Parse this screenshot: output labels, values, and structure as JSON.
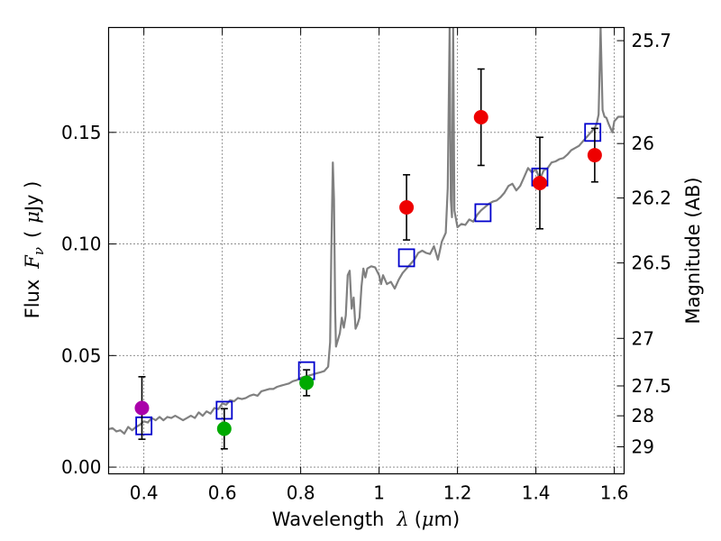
{
  "chart_data": {
    "type": "scatter",
    "title": "",
    "xlabel": "Wavelength",
    "xlabel_symbol": "λ",
    "xlabel_unit_open": "(",
    "xlabel_unit_mu": "μ",
    "xlabel_unit_rest": "m)",
    "ylabel": "Flux",
    "ylabel_symbol": "F",
    "ylabel_subscript": "ν",
    "ylabel_unit_open": "(",
    "ylabel_unit_mu": "μ",
    "ylabel_unit_rest": "Jy )",
    "y2label": "Magnitude (AB)",
    "xlim": [
      0.31,
      1.625
    ],
    "ylim": [
      -0.003,
      0.197
    ],
    "grid": true,
    "xticks": [
      0.4,
      0.6,
      0.8,
      1.0,
      1.2,
      1.4,
      1.6
    ],
    "xtick_labels": [
      "0.4",
      "0.6",
      "0.8",
      "1",
      "1.2",
      "1.4",
      "1.6"
    ],
    "yticks": [
      0.0,
      0.05,
      0.1,
      0.15
    ],
    "ytick_labels": [
      "0.00",
      "0.05",
      "0.10",
      "0.15"
    ],
    "y2ticks": [
      {
        "label": "25.7",
        "flux": 0.1911
      },
      {
        "label": "26",
        "flux": 0.145
      },
      {
        "label": "26.2",
        "flux": 0.1206
      },
      {
        "label": "26.5",
        "flux": 0.0915
      },
      {
        "label": "27",
        "flux": 0.0577
      },
      {
        "label": "27.5",
        "flux": 0.0364
      },
      {
        "label": "28",
        "flux": 0.023
      },
      {
        "label": "29",
        "flux": 0.0091
      }
    ],
    "series": [
      {
        "name": "model spectrum",
        "kind": "line",
        "color": "#808080",
        "points": [
          [
            0.31,
            0.017
          ],
          [
            0.32,
            0.0175
          ],
          [
            0.33,
            0.016
          ],
          [
            0.34,
            0.0165
          ],
          [
            0.35,
            0.015
          ],
          [
            0.36,
            0.018
          ],
          [
            0.37,
            0.0165
          ],
          [
            0.38,
            0.018
          ],
          [
            0.39,
            0.019
          ],
          [
            0.4,
            0.0205
          ],
          [
            0.41,
            0.02
          ],
          [
            0.42,
            0.022
          ],
          [
            0.43,
            0.021
          ],
          [
            0.44,
            0.0225
          ],
          [
            0.45,
            0.021
          ],
          [
            0.46,
            0.0225
          ],
          [
            0.47,
            0.022
          ],
          [
            0.48,
            0.023
          ],
          [
            0.49,
            0.022
          ],
          [
            0.5,
            0.021
          ],
          [
            0.51,
            0.022
          ],
          [
            0.52,
            0.023
          ],
          [
            0.53,
            0.022
          ],
          [
            0.54,
            0.0245
          ],
          [
            0.55,
            0.023
          ],
          [
            0.56,
            0.025
          ],
          [
            0.57,
            0.024
          ],
          [
            0.58,
            0.0265
          ],
          [
            0.59,
            0.026
          ],
          [
            0.6,
            0.0285
          ],
          [
            0.61,
            0.028
          ],
          [
            0.62,
            0.03
          ],
          [
            0.63,
            0.0295
          ],
          [
            0.64,
            0.031
          ],
          [
            0.65,
            0.0305
          ],
          [
            0.66,
            0.031
          ],
          [
            0.67,
            0.032
          ],
          [
            0.68,
            0.0325
          ],
          [
            0.69,
            0.032
          ],
          [
            0.7,
            0.034
          ],
          [
            0.71,
            0.0345
          ],
          [
            0.72,
            0.035
          ],
          [
            0.73,
            0.035
          ],
          [
            0.74,
            0.036
          ],
          [
            0.75,
            0.0365
          ],
          [
            0.76,
            0.037
          ],
          [
            0.77,
            0.0375
          ],
          [
            0.78,
            0.0385
          ],
          [
            0.79,
            0.039
          ],
          [
            0.8,
            0.04
          ],
          [
            0.81,
            0.0405
          ],
          [
            0.82,
            0.041
          ],
          [
            0.83,
            0.0415
          ],
          [
            0.84,
            0.042
          ],
          [
            0.85,
            0.0425
          ],
          [
            0.86,
            0.043
          ],
          [
            0.87,
            0.045
          ],
          [
            0.875,
            0.056
          ],
          [
            0.878,
            0.096
          ],
          [
            0.882,
            0.1365
          ],
          [
            0.885,
            0.12
          ],
          [
            0.888,
            0.07
          ],
          [
            0.89,
            0.054
          ],
          [
            0.9,
            0.06
          ],
          [
            0.905,
            0.067
          ],
          [
            0.91,
            0.0625
          ],
          [
            0.915,
            0.068
          ],
          [
            0.92,
            0.086
          ],
          [
            0.925,
            0.088
          ],
          [
            0.93,
            0.071
          ],
          [
            0.935,
            0.076
          ],
          [
            0.94,
            0.062
          ],
          [
            0.945,
            0.064
          ],
          [
            0.95,
            0.067
          ],
          [
            0.955,
            0.081
          ],
          [
            0.96,
            0.089
          ],
          [
            0.965,
            0.085
          ],
          [
            0.97,
            0.089
          ],
          [
            0.98,
            0.09
          ],
          [
            0.99,
            0.0895
          ],
          [
            1.0,
            0.086
          ],
          [
            1.005,
            0.082
          ],
          [
            1.01,
            0.086
          ],
          [
            1.02,
            0.082
          ],
          [
            1.03,
            0.083
          ],
          [
            1.04,
            0.08
          ],
          [
            1.05,
            0.084
          ],
          [
            1.06,
            0.087
          ],
          [
            1.07,
            0.089
          ],
          [
            1.08,
            0.091
          ],
          [
            1.09,
            0.093
          ],
          [
            1.1,
            0.096
          ],
          [
            1.11,
            0.097
          ],
          [
            1.12,
            0.096
          ],
          [
            1.13,
            0.0955
          ],
          [
            1.14,
            0.099
          ],
          [
            1.15,
            0.093
          ],
          [
            1.155,
            0.097
          ],
          [
            1.16,
            0.101
          ],
          [
            1.17,
            0.105
          ],
          [
            1.175,
            0.125
          ],
          [
            1.18,
            0.197
          ],
          [
            1.183,
            0.12
          ],
          [
            1.186,
            0.112
          ],
          [
            1.189,
            0.197
          ],
          [
            1.192,
            0.115
          ],
          [
            1.2,
            0.1075
          ],
          [
            1.21,
            0.109
          ],
          [
            1.22,
            0.1085
          ],
          [
            1.23,
            0.111
          ],
          [
            1.24,
            0.11
          ],
          [
            1.25,
            0.113
          ],
          [
            1.26,
            0.115
          ],
          [
            1.27,
            0.1165
          ],
          [
            1.28,
            0.118
          ],
          [
            1.29,
            0.119
          ],
          [
            1.3,
            0.1195
          ],
          [
            1.31,
            0.121
          ],
          [
            1.32,
            0.123
          ],
          [
            1.33,
            0.126
          ],
          [
            1.34,
            0.127
          ],
          [
            1.35,
            0.124
          ],
          [
            1.36,
            0.126
          ],
          [
            1.37,
            0.13
          ],
          [
            1.38,
            0.134
          ],
          [
            1.39,
            0.132
          ],
          [
            1.4,
            0.1335
          ],
          [
            1.41,
            0.129
          ],
          [
            1.42,
            0.133
          ],
          [
            1.43,
            0.134
          ],
          [
            1.44,
            0.1365
          ],
          [
            1.45,
            0.137
          ],
          [
            1.46,
            0.138
          ],
          [
            1.47,
            0.1385
          ],
          [
            1.48,
            0.14
          ],
          [
            1.49,
            0.142
          ],
          [
            1.5,
            0.143
          ],
          [
            1.51,
            0.144
          ],
          [
            1.52,
            0.146
          ],
          [
            1.53,
            0.148
          ],
          [
            1.54,
            0.15
          ],
          [
            1.55,
            0.152
          ],
          [
            1.555,
            0.154
          ],
          [
            1.56,
            0.158
          ],
          [
            1.565,
            0.197
          ],
          [
            1.57,
            0.16
          ],
          [
            1.575,
            0.157
          ],
          [
            1.58,
            0.1565
          ],
          [
            1.585,
            0.154
          ],
          [
            1.59,
            0.152
          ],
          [
            1.595,
            0.15
          ],
          [
            1.6,
            0.155
          ],
          [
            1.61,
            0.157
          ],
          [
            1.625,
            0.157
          ]
        ]
      },
      {
        "name": "model photometry",
        "kind": "open-square",
        "color": "#0000cc",
        "points": [
          [
            0.4,
            0.0185
          ],
          [
            0.605,
            0.0255
          ],
          [
            0.815,
            0.0432
          ],
          [
            1.07,
            0.0938
          ],
          [
            1.265,
            0.114
          ],
          [
            1.41,
            0.13
          ],
          [
            1.545,
            0.15
          ]
        ]
      },
      {
        "name": "observed (magenta)",
        "kind": "point",
        "color": "#aa00aa",
        "points": [
          {
            "x": 0.395,
            "y": 0.0265,
            "lo": 0.0125,
            "hi": 0.0405
          }
        ]
      },
      {
        "name": "observed (green)",
        "kind": "point",
        "color": "#00aa00",
        "points": [
          {
            "x": 0.605,
            "y": 0.0172,
            "lo": 0.0082,
            "hi": 0.0262
          },
          {
            "x": 0.815,
            "y": 0.0378,
            "lo": 0.032,
            "hi": 0.0436
          }
        ]
      },
      {
        "name": "observed (red)",
        "kind": "point",
        "color": "#ee0000",
        "points": [
          {
            "x": 1.07,
            "y": 0.1164,
            "lo": 0.1018,
            "hi": 0.131
          },
          {
            "x": 1.26,
            "y": 0.1568,
            "lo": 0.1352,
            "hi": 0.1784
          },
          {
            "x": 1.41,
            "y": 0.1273,
            "lo": 0.1068,
            "hi": 0.1478
          },
          {
            "x": 1.55,
            "y": 0.1398,
            "lo": 0.1278,
            "hi": 0.1518
          }
        ]
      }
    ]
  }
}
